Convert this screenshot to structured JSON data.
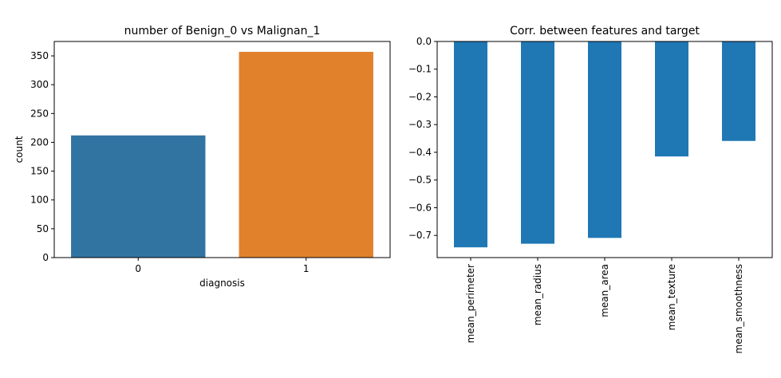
{
  "chart_data": [
    {
      "type": "bar",
      "title": "number of Benign_0 vs Malignan_1",
      "xlabel": "diagnosis",
      "ylabel": "count",
      "categories": [
        "0",
        "1"
      ],
      "values": [
        212,
        357
      ],
      "colors": [
        "#3274a1",
        "#e1812c"
      ],
      "ylim": [
        0,
        375
      ],
      "yticks": [
        0,
        50,
        100,
        150,
        200,
        250,
        300,
        350
      ],
      "grid": false
    },
    {
      "type": "bar",
      "title": "Corr. between features and target",
      "xlabel": "",
      "ylabel": "",
      "categories": [
        "mean_perimeter",
        "mean_radius",
        "mean_area",
        "mean_texture",
        "mean_smoothness"
      ],
      "values": [
        -0.743,
        -0.73,
        -0.709,
        -0.415,
        -0.359
      ],
      "color": "#1f77b4",
      "ylim": [
        -0.78,
        0.0
      ],
      "yticks": [
        0.0,
        -0.1,
        -0.2,
        -0.3,
        -0.4,
        -0.5,
        -0.6,
        -0.7
      ],
      "ytick_labels": [
        "0.0",
        "−0.1",
        "−0.2",
        "−0.3",
        "−0.4",
        "−0.5",
        "−0.6",
        "−0.7"
      ],
      "xtick_rotation": "vertical",
      "grid": false
    }
  ]
}
